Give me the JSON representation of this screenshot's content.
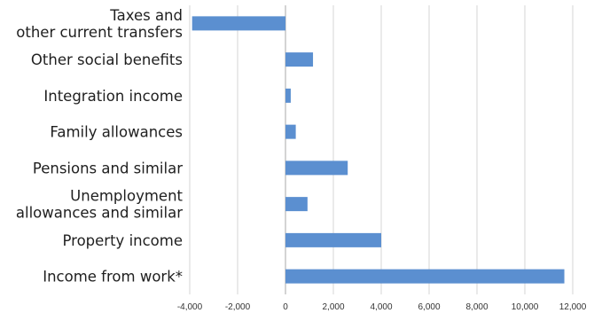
{
  "chart_data": {
    "type": "bar",
    "orientation": "horizontal",
    "categories": [
      [
        "Taxes and",
        "other current transfers"
      ],
      [
        "Other social benefits"
      ],
      [
        "Integration income"
      ],
      [
        "Family allowances"
      ],
      [
        "Pensions and similar"
      ],
      [
        "Unemployment",
        "allowances and similar"
      ],
      [
        "Property income"
      ],
      [
        "Income from work*"
      ]
    ],
    "values": [
      -3900,
      1150,
      220,
      430,
      2600,
      920,
      4000,
      11650
    ],
    "xlim": [
      -4000,
      12000
    ],
    "xticks": [
      -4000,
      -2000,
      0,
      2000,
      4000,
      6000,
      8000,
      10000,
      12000
    ],
    "xtick_labels": [
      "-4,000",
      "-2,000",
      "0",
      "2,000",
      "4,000",
      "6,000",
      "8,000",
      "10,000",
      "12,000"
    ],
    "grid": "vertical",
    "bar_color": "#5b8fd0",
    "title": "",
    "xlabel": "",
    "ylabel": ""
  }
}
